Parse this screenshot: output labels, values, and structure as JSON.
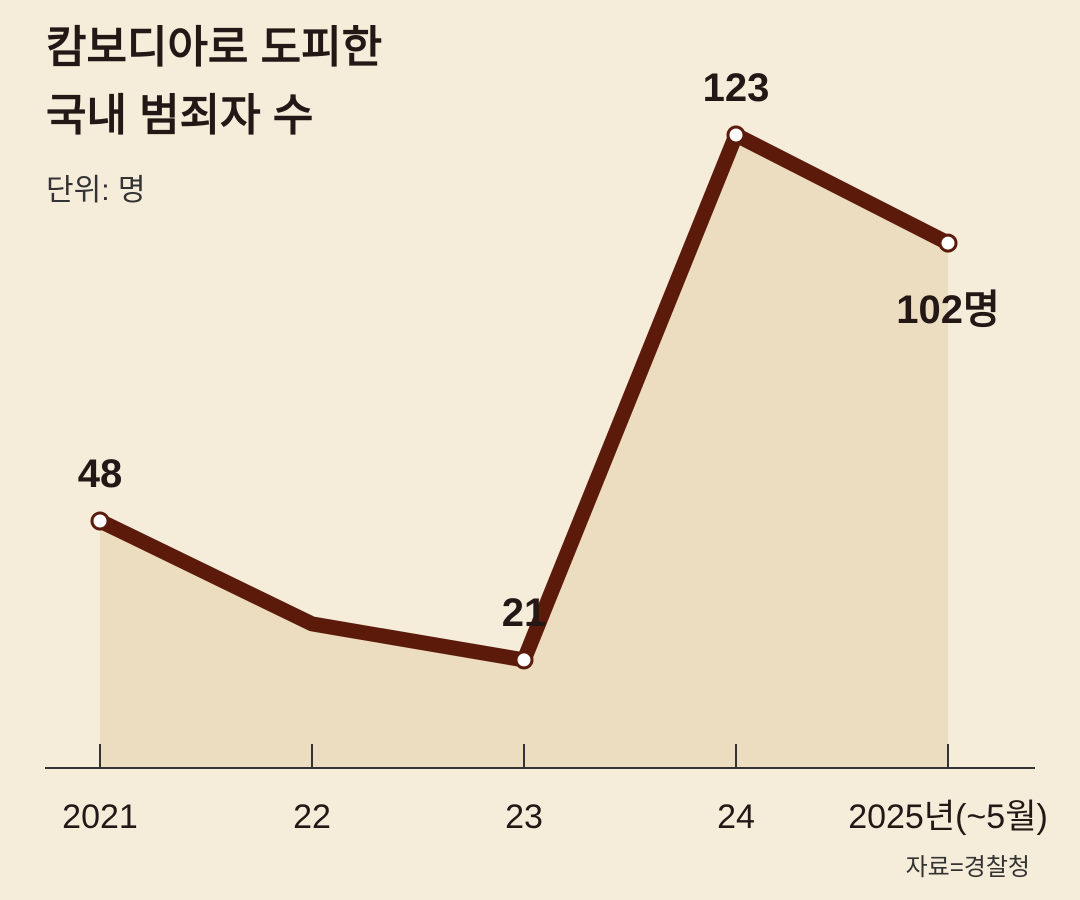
{
  "chart_data": {
    "type": "line",
    "title": [
      "캄보디아로 도피한",
      "국내 범죄자 수"
    ],
    "subtitle": "단위: 명",
    "source": "자료=경찰청",
    "categories": [
      "2021",
      "22",
      "23",
      "24",
      "2025년(~5월)"
    ],
    "values": [
      48,
      28,
      21,
      123,
      102
    ],
    "value_labels": [
      "48",
      null,
      "21",
      "123",
      "102명"
    ],
    "color": "#5c1a0b",
    "area_color": "#ecdcc0"
  }
}
